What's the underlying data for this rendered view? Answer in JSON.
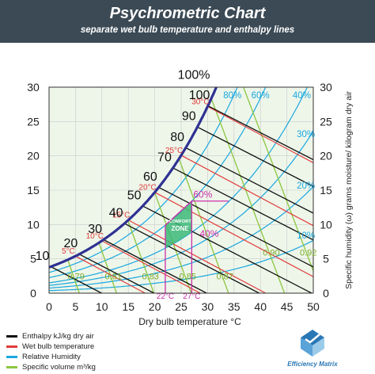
{
  "header": {
    "title": "Psychrometric Chart",
    "subtitle": "separate wet bulb temperature and enthalpy lines"
  },
  "chart_data": {
    "type": "line",
    "title": "Psychrometric Chart",
    "subtitle": "separate wet bulb temperature and enthalpy lines",
    "xlabel": "Dry bulb temperature °C",
    "ylabel": "Specific humidity (ω) grams moisture/ kilogram dry air",
    "xlim": [
      0,
      50
    ],
    "ylim": [
      0,
      30
    ],
    "x_ticks": [
      "0",
      "5",
      "10",
      "15",
      "20",
      "25",
      "30",
      "35",
      "40",
      "45",
      "50"
    ],
    "y_ticks": [
      "0",
      "5",
      "10",
      "15",
      "20",
      "25",
      "30"
    ],
    "grid": true,
    "series": [
      {
        "name": "Enthalpy kJ/kg dry air",
        "color": "#111111",
        "lines": [
          {
            "label": "10",
            "value": 10
          },
          {
            "label": "20",
            "value": 20
          },
          {
            "label": "30",
            "value": 30
          },
          {
            "label": "40",
            "value": 40
          },
          {
            "label": "50",
            "value": 50
          },
          {
            "label": "60",
            "value": 60
          },
          {
            "label": "70",
            "value": 70
          },
          {
            "label": "80",
            "value": 80
          },
          {
            "label": "90",
            "value": 90
          },
          {
            "label": "100",
            "value": 100
          }
        ]
      },
      {
        "name": "Wet bulb temperature",
        "color": "#e23b3b",
        "lines": [
          {
            "label": "5°C",
            "value": 5
          },
          {
            "label": "10°C",
            "value": 10
          },
          {
            "label": "15°C",
            "value": 15
          },
          {
            "label": "20°C",
            "value": 20
          },
          {
            "label": "25°C",
            "value": 25
          },
          {
            "label": "30°C",
            "value": 30
          }
        ]
      },
      {
        "name": "Relative Humidity",
        "color": "#1aa7e0",
        "lines": [
          {
            "label": "10%",
            "value": 10
          },
          {
            "label": "20%",
            "value": 20
          },
          {
            "label": "30%",
            "value": 30
          },
          {
            "label": "40%",
            "value": 40
          },
          {
            "label": "60%",
            "value": 60
          },
          {
            "label": "80%",
            "value": 80
          }
        ]
      },
      {
        "name": "Specific volume m³/kg",
        "color": "#8cc63f",
        "lines": [
          {
            "label": "0.79",
            "value": 0.79
          },
          {
            "label": "0.81",
            "value": 0.81
          },
          {
            "label": "0.83",
            "value": 0.83
          },
          {
            "label": "0.85",
            "value": 0.85
          },
          {
            "label": "0.87",
            "value": 0.87
          },
          {
            "label": "0.90",
            "value": 0.9
          },
          {
            "label": "0.92",
            "value": 0.92
          }
        ]
      }
    ],
    "saturation_curve": {
      "label": "100%",
      "color": "#2e3192"
    },
    "comfort_zone": {
      "label_line1": "COMFORT",
      "label_line2": "ZONE",
      "color": "#3cb878",
      "dry_bulb_lines": [
        {
          "label": "22°C",
          "value": 22
        },
        {
          "label": "27°C",
          "value": 27
        }
      ],
      "rh_labels": [
        {
          "label": "60%",
          "value": 60
        },
        {
          "label": "40%",
          "value": 40
        }
      ],
      "boundary_color": "#cc2fa9"
    }
  },
  "legend": {
    "items": [
      {
        "label": "Enthalpy kJ/kg dry air",
        "color": "#111111"
      },
      {
        "label": "Wet bulb temperature",
        "color": "#e23b3b"
      },
      {
        "label": "Relative Humidity",
        "color": "#1aa7e0"
      },
      {
        "label": "Specific volume m³/kg",
        "color": "#8cc63f"
      }
    ]
  },
  "logo": {
    "brand": "Efficiency Matrix",
    "icon": "efficiency-matrix-logo-icon"
  }
}
